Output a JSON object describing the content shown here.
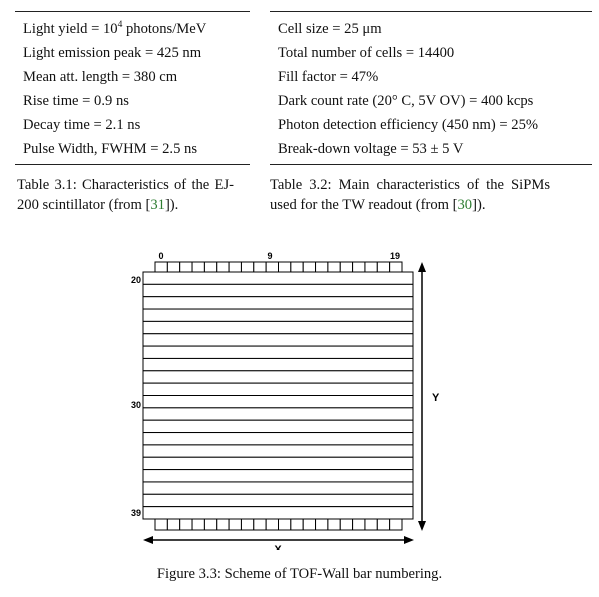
{
  "table1": {
    "rows": [
      {
        "pre": "Light yield = 10",
        "sup": "4",
        "post": " photons/MeV"
      },
      {
        "pre": "Light emission peak = 425 nm",
        "sup": "",
        "post": ""
      },
      {
        "pre": "Mean att. length = 380 cm",
        "sup": "",
        "post": ""
      },
      {
        "pre": "Rise time = 0.9 ns",
        "sup": "",
        "post": ""
      },
      {
        "pre": "Decay time = 2.1 ns",
        "sup": "",
        "post": ""
      },
      {
        "pre": "Pulse Width, FWHM = 2.5 ns",
        "sup": "",
        "post": ""
      }
    ],
    "caption": {
      "label": "Table 3.1:",
      "text_before": " Characteristics of the EJ-200 scintillator (from [",
      "cite": "31",
      "text_after": "])."
    }
  },
  "table2": {
    "rows": [
      "Cell size = 25 μm",
      "Total number of cells = 14400",
      "Fill factor = 47%",
      "Dark count rate (20° C, 5V OV) = 400 kcps",
      "Photon detection efficiency (450 nm) = 25%",
      "Break-down voltage = 53 ± 5 V"
    ],
    "caption": {
      "label": "Table 3.2:",
      "text_before": " Main characteristics of the SiPMs used for the TW readout (from [",
      "cite": "30",
      "text_after": "])."
    }
  },
  "figure": {
    "top_labels": [
      "0",
      "9",
      "19"
    ],
    "side_labels": [
      "20",
      "30",
      "39"
    ],
    "x_label": "X",
    "y_label": "Y",
    "n_vertical_bars": 20,
    "n_horizontal_bars": 20,
    "caption": "Figure 3.3: Scheme of TOF-Wall bar numbering."
  }
}
